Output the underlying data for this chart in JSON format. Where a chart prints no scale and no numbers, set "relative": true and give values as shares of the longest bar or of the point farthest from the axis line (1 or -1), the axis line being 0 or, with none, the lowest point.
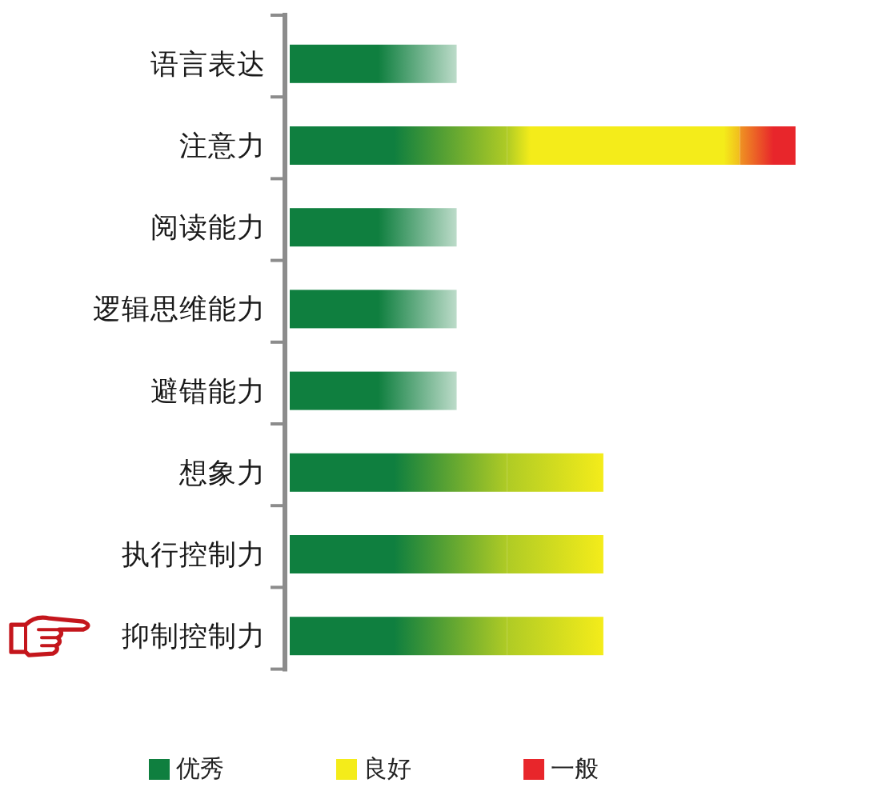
{
  "chart_data": {
    "type": "bar",
    "orientation": "horizontal",
    "stacked": true,
    "relative": true,
    "categories": [
      "语言表达",
      "注意力",
      "阅读能力",
      "逻辑思维能力",
      "避错能力",
      "想象力",
      "执行控制力",
      "抑制控制力"
    ],
    "series": [
      {
        "name": "优秀",
        "color": "#0f7f3f",
        "values": [
          0.33,
          0.43,
          0.33,
          0.33,
          0.33,
          0.43,
          0.43,
          0.43
        ]
      },
      {
        "name": "良好",
        "color": "#f4ec1a",
        "values": [
          0,
          0.46,
          0,
          0,
          0,
          0.19,
          0.19,
          0.19
        ]
      },
      {
        "name": "一般",
        "color": "#e8262b",
        "values": [
          0,
          0.11,
          0,
          0,
          0,
          0,
          0,
          0
        ]
      }
    ],
    "legend": "bottom"
  }
}
